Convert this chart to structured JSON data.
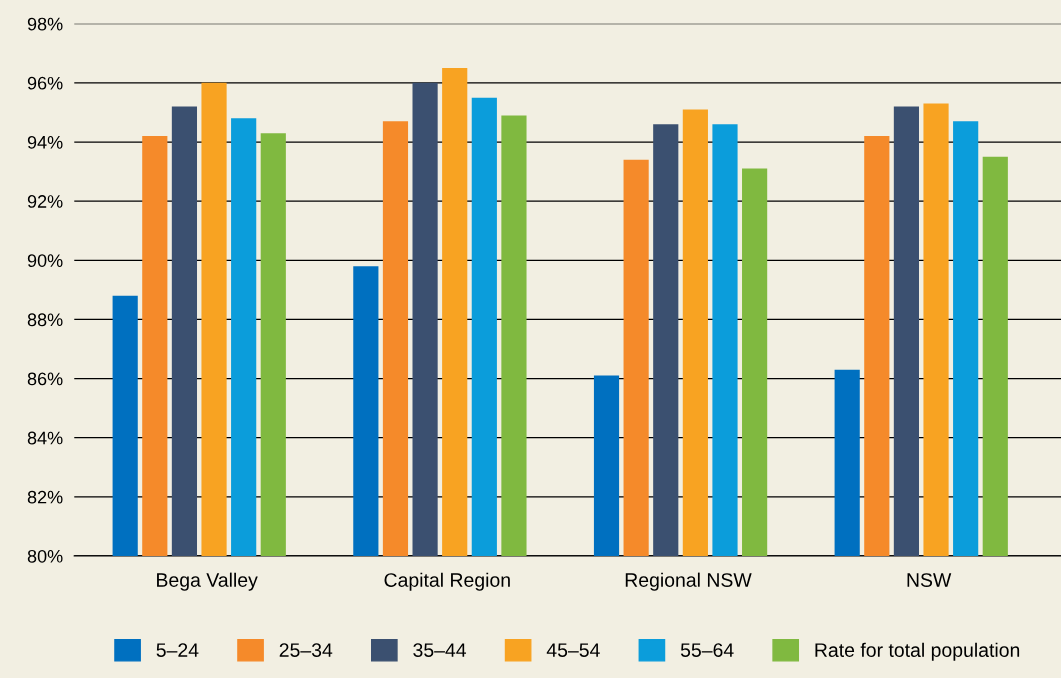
{
  "chart_data": {
    "type": "bar",
    "categories": [
      "Bega Valley",
      "Capital Region",
      "Regional NSW",
      "NSW"
    ],
    "series": [
      {
        "name": "5–24",
        "color": "#0070c0",
        "values": [
          88.8,
          89.8,
          86.1,
          86.3
        ]
      },
      {
        "name": "25–34",
        "color": "#f58a2a",
        "values": [
          94.2,
          94.7,
          93.4,
          94.2
        ]
      },
      {
        "name": "35–44",
        "color": "#3b5070",
        "values": [
          95.2,
          96.0,
          94.6,
          95.2
        ]
      },
      {
        "name": "45–54",
        "color": "#f8a322",
        "values": [
          96.0,
          96.5,
          95.1,
          95.3
        ]
      },
      {
        "name": "55–64",
        "color": "#0b9ddb",
        "values": [
          94.8,
          95.5,
          94.6,
          94.7
        ]
      },
      {
        "name": "Rate for total population",
        "color": "#80b940",
        "values": [
          94.3,
          94.9,
          93.1,
          93.5
        ]
      }
    ],
    "ylim": [
      80,
      98
    ],
    "yticks": [
      {
        "value": 80,
        "label": "80%"
      },
      {
        "value": 82,
        "label": "82%"
      },
      {
        "value": 84,
        "label": "84%"
      },
      {
        "value": 86,
        "label": "86%"
      },
      {
        "value": 88,
        "label": "88%"
      },
      {
        "value": 90,
        "label": "90%"
      },
      {
        "value": 92,
        "label": "92%"
      },
      {
        "value": 94,
        "label": "94%"
      },
      {
        "value": 96,
        "label": "96%"
      },
      {
        "value": 98,
        "label": "98%"
      }
    ],
    "grid": "y",
    "legend": "bottom"
  }
}
